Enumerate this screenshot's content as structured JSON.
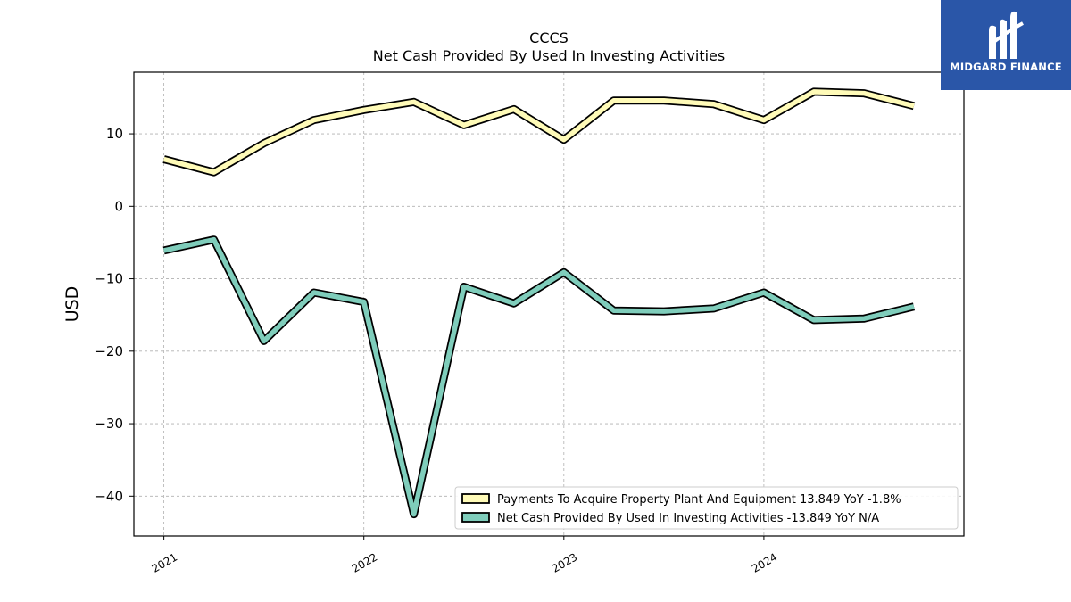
{
  "brand": {
    "name": "MIDGARD FINANCE",
    "logo_icon": "midgard-m-logo",
    "bg_color": "#2a56a8"
  },
  "chart_data": {
    "type": "line",
    "title": "CCCS",
    "subtitle": "Net Cash Provided By Used In Investing Activities",
    "ylabel": "USD",
    "xlabel": "",
    "ylim": [
      -45.5,
      18.5
    ],
    "xlim": [
      2020.85,
      2025.0
    ],
    "yticks": [
      10,
      0,
      -10,
      -20,
      -30,
      -40
    ],
    "ytick_labels": [
      "10",
      "0",
      "−10",
      "−20",
      "−30",
      "−40"
    ],
    "xticks": [
      2021,
      2022,
      2023,
      2024
    ],
    "xtick_labels": [
      "2021",
      "2022",
      "2023",
      "2024"
    ],
    "grid": true,
    "legend_position": "lower-right",
    "x": [
      2021.0,
      2021.25,
      2021.5,
      2021.75,
      2022.0,
      2022.25,
      2022.5,
      2022.75,
      2023.0,
      2023.25,
      2023.5,
      2023.75,
      2024.0,
      2024.25,
      2024.5,
      2024.75
    ],
    "series": [
      {
        "name": "Payments To Acquire Property Plant And Equipment",
        "legend_label": "Payments To Acquire Property Plant And Equipment  13.849 YoY -1.8%",
        "color": "#fffbb8",
        "values": [
          6.5,
          4.7,
          8.7,
          11.9,
          13.3,
          14.4,
          11.2,
          13.4,
          9.2,
          14.6,
          14.6,
          14.1,
          11.9,
          15.8,
          15.6,
          13.85
        ]
      },
      {
        "name": "Net Cash Provided By Used In Investing Activities",
        "legend_label": "Net Cash Provided By Used In Investing Activities  -13.849 YoY N/A",
        "color": "#7fcdbb",
        "values": [
          -6.1,
          -4.6,
          -18.6,
          -11.9,
          -13.2,
          -42.5,
          -11.1,
          -13.4,
          -9.1,
          -14.4,
          -14.5,
          -14.1,
          -11.9,
          -15.7,
          -15.5,
          -13.85
        ]
      }
    ]
  }
}
